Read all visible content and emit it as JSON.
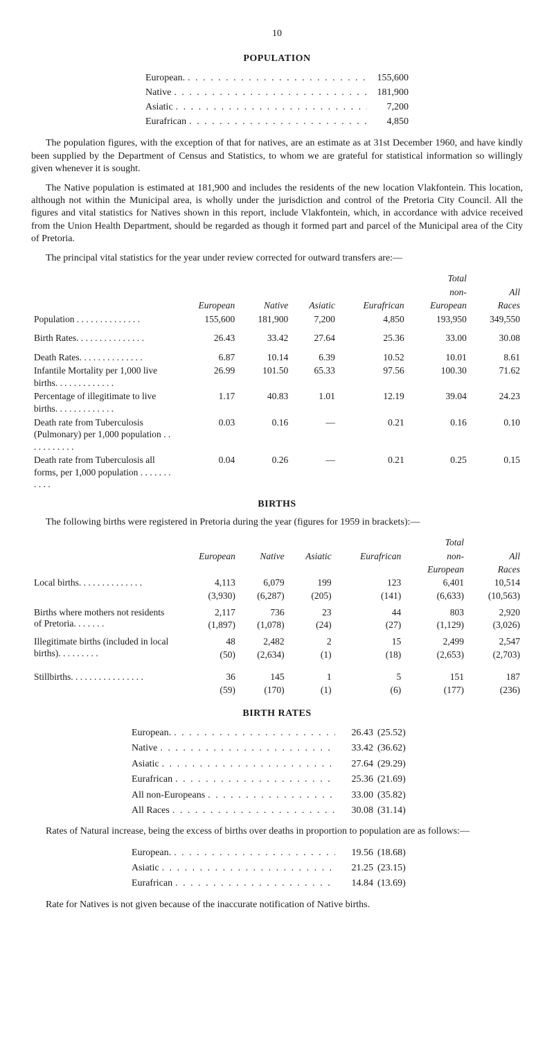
{
  "page_number": "10",
  "headings": {
    "population": "POPULATION",
    "births": "BIRTHS",
    "birth_rates": "BIRTH RATES"
  },
  "population_list": [
    {
      "label": "European.",
      "value": "155,600"
    },
    {
      "label": "Native",
      "value": "181,900"
    },
    {
      "label": "Asiatic",
      "value": "7,200"
    },
    {
      "label": "Eurafrican",
      "value": "4,850"
    }
  ],
  "para1": "The population figures, with the exception of that for natives, are an estimate as at 31st December 1960, and have kindly been supplied by the Department of Census and Statistics, to whom we are grateful for statistical information so willingly given whenever it is sought.",
  "para2": "The Native population is estimated at 181,900 and includes the residents of the new location Vlakfontein. This location, although not within the Municipal area, is wholly under the jurisdiction and control of the Pretoria City Council. All the figures and vital statistics for Natives shown in this report, include Vlakfontein, which, in accordance with advice received from the Union Health Department, should be regarded as though it formed part and parcel of the Municipal area of the City of Pretoria.",
  "para3": "The principal vital statistics for the year under review corrected for outward transfers are:—",
  "vital_head": {
    "top1": "Total",
    "top2": "non-",
    "c1": "European",
    "c2": "Native",
    "c3": "Asiatic",
    "c4": "Eurafrican",
    "c5": "European",
    "all": "All",
    "races": "Races"
  },
  "vital_rows": [
    {
      "label": "Population . . . . . . . . . . . . . .",
      "v": [
        "155,600",
        "181,900",
        "7,200",
        "4,850",
        "193,950",
        "349,550"
      ]
    },
    {
      "label": "Birth Rates. . . . . . . . . . . . . . .",
      "v": [
        "26.43",
        "33.42",
        "27.64",
        "25.36",
        "33.00",
        "30.08"
      ],
      "gap_before": true
    },
    {
      "label": "Death Rates. . . . . . . . . . . . . .",
      "v": [
        "6.87",
        "10.14",
        "6.39",
        "10.52",
        "10.01",
        "8.61"
      ],
      "gap_before": true
    },
    {
      "label": "Infantile Mortality per 1,000 live births. . . . . . . . . . . . .",
      "v": [
        "26.99",
        "101.50",
        "65.33",
        "97.56",
        "100.30",
        "71.62"
      ]
    },
    {
      "label": "Percentage of illegitimate to live births. . . . . . . . . . . . .",
      "v": [
        "1.17",
        "40.83",
        "1.01",
        "12.19",
        "39.04",
        "24.23"
      ]
    },
    {
      "label": "Death rate from Tuberculosis (Pulmonary) per 1,000 population . . . . . . . . . . .",
      "v": [
        "0.03",
        "0.16",
        "—",
        "0.21",
        "0.16",
        "0.10"
      ]
    },
    {
      "label": "Death rate from Tuberculosis all forms, per 1,000 population . . . . . . . . . . .",
      "v": [
        "0.04",
        "0.26",
        "—",
        "0.21",
        "0.25",
        "0.15"
      ]
    }
  ],
  "births_intro": "The following births were registered in Pretoria during the year (figures for 1959 in brackets):—",
  "births_head": {
    "top1": "Total",
    "top2": "non-",
    "top3": "European",
    "c1": "European",
    "c2": "Native",
    "c3": "Asiatic",
    "c4": "Eurafrican",
    "all": "All",
    "races": "Races"
  },
  "births_rows": [
    {
      "label": "Local births. . . . . . . . . . . . . .",
      "a": [
        "4,113",
        "6,079",
        "199",
        "123",
        "6,401",
        "10,514"
      ],
      "b": [
        "(3,930)",
        "(6,287)",
        "(205)",
        "(141)",
        "(6,633)",
        "(10,563)"
      ]
    },
    {
      "label": "Births where mothers not residents of Pretoria. . . . . . .",
      "a": [
        "2,117",
        "736",
        "23",
        "44",
        "803",
        "2,920"
      ],
      "b": [
        "(1,897)",
        "(1,078)",
        "(24)",
        "(27)",
        "(1,129)",
        "(3,026)"
      ]
    },
    {
      "label": "Illegitimate births (included in local births). . . . . . . . .",
      "a": [
        "48",
        "2,482",
        "2",
        "15",
        "2,499",
        "2,547"
      ],
      "b": [
        "(50)",
        "(2,634)",
        "(1)",
        "(18)",
        "(2,653)",
        "(2,703)"
      ]
    },
    {
      "label": "Stillbirths. . . . . . . . . . . . . . . .",
      "a": [
        "36",
        "145",
        "1",
        "5",
        "151",
        "187"
      ],
      "b": [
        "(59)",
        "(170)",
        "(1)",
        "(6)",
        "(177)",
        "(236)"
      ],
      "gap_before": true
    }
  ],
  "birth_rates_list": [
    {
      "label": "European.",
      "v1": "26.43",
      "v2": "(25.52)"
    },
    {
      "label": "Native",
      "v1": "33.42",
      "v2": "(36.62)"
    },
    {
      "label": "Asiatic",
      "v1": "27.64",
      "v2": "(29.29)"
    },
    {
      "label": "Eurafrican",
      "v1": "25.36",
      "v2": "(21.69)"
    },
    {
      "label": "All non-Europeans",
      "v1": "33.00",
      "v2": "(35.82)"
    },
    {
      "label": "All Races",
      "v1": "30.08",
      "v2": "(31.14)"
    }
  ],
  "nat_increase_intro": "Rates of Natural increase, being the excess of births over deaths in proportion to population are as follows:—",
  "nat_increase_list": [
    {
      "label": "European.",
      "v1": "19.56",
      "v2": "(18.68)"
    },
    {
      "label": "Asiatic",
      "v1": "21.25",
      "v2": "(23.15)"
    },
    {
      "label": "Eurafrican",
      "v1": "14.84",
      "v2": "(13.69)"
    }
  ],
  "final_note": "Rate for Natives is not given because of the inaccurate notification of Native births.",
  "dots": ". . . . . . . . . . . . . . . . . . . . . . . . . . ."
}
